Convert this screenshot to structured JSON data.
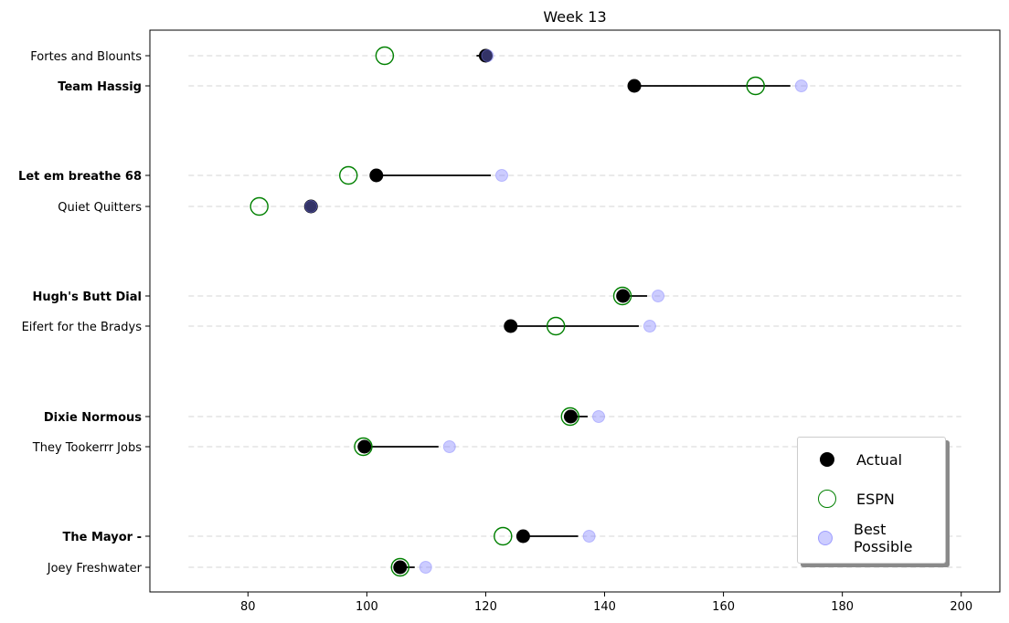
{
  "chart_data": {
    "type": "dumbbell",
    "title": "Week 13",
    "xlim": [
      63.5,
      206.5
    ],
    "xticks": [
      80,
      100,
      120,
      140,
      160,
      180,
      200
    ],
    "grid": "horizontal dashed",
    "legend": {
      "position": "bottom-right",
      "entries": [
        "Actual",
        "ESPN",
        "Best Possible"
      ]
    },
    "colors": {
      "actual": "#000000",
      "espn": "#008000",
      "best": "#8080ff",
      "grid": "#dddddd"
    },
    "teams": [
      {
        "name": "Fortes and Blounts",
        "bold": false,
        "actual": 120,
        "espn": 103,
        "best": 120.3
      },
      {
        "name": "Team Hassig",
        "bold": true,
        "actual": 145,
        "espn": 165.4,
        "best": 173.1
      },
      {
        "name": "Let em breathe 68",
        "bold": true,
        "actual": 101.6,
        "espn": 96.9,
        "best": 122.7
      },
      {
        "name": "Quiet Quitters",
        "bold": false,
        "actual": 90.6,
        "espn": 81.9,
        "best": 90.6
      },
      {
        "name": "Hugh's Butt Dial",
        "bold": true,
        "actual": 143.1,
        "espn": 143.0,
        "best": 149.0
      },
      {
        "name": "Eifert for the Bradys",
        "bold": false,
        "actual": 124.2,
        "espn": 131.8,
        "best": 147.6
      },
      {
        "name": "Dixie Normous",
        "bold": true,
        "actual": 134.3,
        "espn": 134.2,
        "best": 139.0
      },
      {
        "name": "They Tookerrr Jobs",
        "bold": false,
        "actual": 99.6,
        "espn": 99.4,
        "best": 113.9
      },
      {
        "name": "The Mayor -",
        "bold": true,
        "actual": 126.3,
        "espn": 122.9,
        "best": 137.4
      },
      {
        "name": "Joey Freshwater",
        "bold": false,
        "actual": 105.6,
        "espn": 105.6,
        "best": 109.9
      }
    ]
  }
}
